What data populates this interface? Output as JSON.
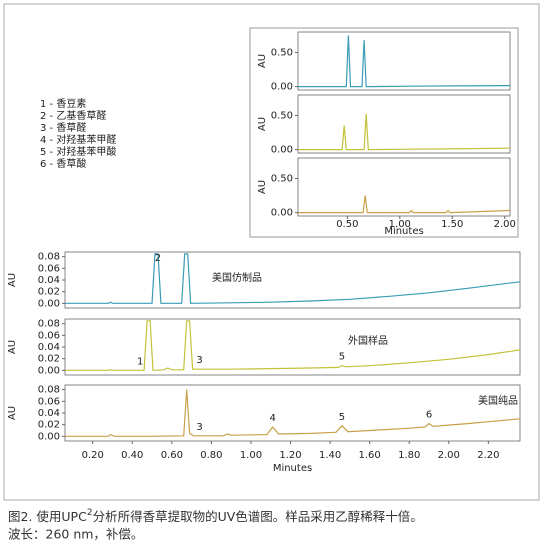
{
  "chart_data": [
    {
      "type": "line",
      "ylabel": "AU",
      "xlim": [
        0.03,
        2.05
      ],
      "ylim": [
        -0.05,
        0.8
      ],
      "yticks": [
        {
          "value": 0,
          "label": "0.00"
        },
        {
          "value": 0.5,
          "label": "0.50"
        }
      ],
      "x": [
        0.03,
        0.49,
        0.51,
        0.53,
        0.64,
        0.66,
        0.68,
        0.7,
        1.1,
        1.5,
        2.05
      ],
      "series": [
        {
          "color": "#3a9cb5",
          "values": [
            0,
            0,
            0.75,
            0,
            0,
            0.68,
            0,
            0,
            0.005,
            0.01,
            0.015
          ]
        }
      ]
    },
    {
      "type": "line",
      "ylabel": "AU",
      "xlim": [
        0.03,
        2.05
      ],
      "ylim": [
        -0.05,
        0.8
      ],
      "yticks": [
        {
          "value": 0,
          "label": "0.00"
        },
        {
          "value": 0.5,
          "label": "0.50"
        }
      ],
      "x": [
        0.03,
        0.45,
        0.47,
        0.49,
        0.66,
        0.68,
        0.7,
        1.1,
        1.46,
        2.05
      ],
      "series": [
        {
          "color": "#c4c13a",
          "values": [
            0,
            0,
            0.35,
            0,
            0,
            0.52,
            0,
            0.005,
            0.01,
            0.02
          ]
        }
      ]
    },
    {
      "type": "line",
      "ylabel": "AU",
      "xlabel": "Minutes",
      "xlim": [
        0.03,
        2.05
      ],
      "ylim": [
        -0.05,
        0.8
      ],
      "yticks": [
        {
          "value": 0,
          "label": "0.00"
        },
        {
          "value": 0.5,
          "label": "0.50"
        }
      ],
      "xticks": [
        {
          "value": 0.5,
          "label": "0.50"
        },
        {
          "value": 1,
          "label": "1.00"
        },
        {
          "value": 1.5,
          "label": "1.50"
        },
        {
          "value": 2,
          "label": "2.00"
        }
      ],
      "x": [
        0.03,
        0.65,
        0.67,
        0.69,
        1.09,
        1.11,
        1.13,
        1.44,
        1.46,
        1.48,
        2.05
      ],
      "series": [
        {
          "color": "#c9a04a",
          "values": [
            0,
            0,
            0.25,
            0,
            0,
            0.03,
            0,
            0,
            0.03,
            0,
            0.03
          ]
        }
      ]
    },
    {
      "type": "line",
      "ylabel": "AU",
      "label": "美国仿制品",
      "xlim": [
        0.06,
        2.36
      ],
      "ylim": [
        -0.008,
        0.088
      ],
      "yticks": [
        {
          "value": 0,
          "label": "0.00"
        },
        {
          "value": 0.02,
          "label": "0.02"
        },
        {
          "value": 0.04,
          "label": "0.04"
        },
        {
          "value": 0.06,
          "label": "0.06"
        },
        {
          "value": 0.08,
          "label": "0.08"
        }
      ],
      "annotations": [
        {
          "label": "2",
          "x": 0.53
        }
      ],
      "x": [
        0.06,
        0.28,
        0.29,
        0.3,
        0.5,
        0.515,
        0.53,
        0.545,
        0.65,
        0.665,
        0.68,
        0.695,
        0.9,
        1.1,
        1.3,
        1.5,
        1.7,
        1.9,
        2.1,
        2.36
      ],
      "series": [
        {
          "color": "#3a9cb5",
          "values": [
            0,
            0,
            0.002,
            0,
            0,
            0.085,
            0.085,
            0,
            0,
            0.085,
            0.085,
            0,
            0.001,
            0.002,
            0.004,
            0.007,
            0.012,
            0.018,
            0.026,
            0.037
          ]
        }
      ]
    },
    {
      "type": "line",
      "ylabel": "AU",
      "label": "外国样品",
      "xlim": [
        0.06,
        2.36
      ],
      "ylim": [
        -0.008,
        0.088
      ],
      "yticks": [
        {
          "value": 0,
          "label": "0.00"
        },
        {
          "value": 0.02,
          "label": "0.02"
        },
        {
          "value": 0.04,
          "label": "0.04"
        },
        {
          "value": 0.06,
          "label": "0.06"
        },
        {
          "value": 0.08,
          "label": "0.08"
        }
      ],
      "annotations": [
        {
          "label": "1",
          "x": 0.44
        },
        {
          "label": "3",
          "x": 0.74
        },
        {
          "label": "5",
          "x": 1.46
        }
      ],
      "x": [
        0.06,
        0.28,
        0.29,
        0.3,
        0.46,
        0.475,
        0.49,
        0.505,
        0.56,
        0.58,
        0.6,
        0.66,
        0.675,
        0.69,
        0.705,
        0.9,
        1.1,
        1.3,
        1.44,
        1.46,
        1.48,
        1.6,
        1.8,
        2.0,
        2.2,
        2.36
      ],
      "series": [
        {
          "color": "#c4c13a",
          "values": [
            0,
            0,
            0.001,
            0,
            0,
            0.085,
            0.085,
            0,
            0.001,
            0.004,
            0.001,
            0.001,
            0.085,
            0.085,
            0.002,
            0.002,
            0.003,
            0.004,
            0.005,
            0.008,
            0.006,
            0.008,
            0.013,
            0.019,
            0.027,
            0.035
          ]
        }
      ]
    },
    {
      "type": "line",
      "ylabel": "AU",
      "label": "美国纯品",
      "xlabel": "Minutes",
      "xlim": [
        0.06,
        2.36
      ],
      "ylim": [
        -0.008,
        0.088
      ],
      "yticks": [
        {
          "value": 0,
          "label": "0.00"
        },
        {
          "value": 0.02,
          "label": "0.02"
        },
        {
          "value": 0.04,
          "label": "0.04"
        },
        {
          "value": 0.06,
          "label": "0.06"
        },
        {
          "value": 0.08,
          "label": "0.08"
        }
      ],
      "xticks": [
        {
          "value": 0.2,
          "label": "0.20"
        },
        {
          "value": 0.4,
          "label": "0.40"
        },
        {
          "value": 0.6,
          "label": "0.60"
        },
        {
          "value": 0.8,
          "label": "0.80"
        },
        {
          "value": 1,
          "label": "1.00"
        },
        {
          "value": 1.2,
          "label": "1.20"
        },
        {
          "value": 1.4,
          "label": "1.40"
        },
        {
          "value": 1.6,
          "label": "1.60"
        },
        {
          "value": 1.8,
          "label": "1.80"
        },
        {
          "value": 2,
          "label": "2.00"
        },
        {
          "value": 2.2,
          "label": "2.20"
        }
      ],
      "annotations": [
        {
          "label": "3",
          "x": 0.74
        },
        {
          "label": "4",
          "x": 1.11
        },
        {
          "label": "5",
          "x": 1.46
        },
        {
          "label": "6",
          "x": 1.9
        }
      ],
      "x": [
        0.06,
        0.28,
        0.29,
        0.31,
        0.5,
        0.66,
        0.675,
        0.69,
        0.71,
        0.86,
        0.88,
        0.9,
        1.08,
        1.11,
        1.14,
        1.3,
        1.43,
        1.46,
        1.49,
        1.6,
        1.8,
        1.88,
        1.9,
        1.92,
        2.1,
        2.36
      ],
      "series": [
        {
          "color": "#c9a04a",
          "values": [
            0,
            0,
            0.003,
            0,
            0,
            0.001,
            0.08,
            0.005,
            0.001,
            0.001,
            0.004,
            0.002,
            0.003,
            0.016,
            0.004,
            0.005,
            0.007,
            0.018,
            0.008,
            0.01,
            0.014,
            0.016,
            0.022,
            0.017,
            0.022,
            0.03
          ]
        }
      ]
    }
  ],
  "compounds": [
    "1 - 香豆素",
    "2 - 乙基香草醛",
    "3 - 香草醛",
    "4 - 对羟基苯甲醛",
    "5 - 对羟基苯甲酸",
    "6 - 香草酸"
  ],
  "caption": {
    "before": "图2. 使用UPC",
    "sup": "2",
    "after": "分析所得香草提取物的UV色谱图。样品采用乙醇稀释十倍。",
    "line2": "波长：260 nm，补偿。"
  }
}
